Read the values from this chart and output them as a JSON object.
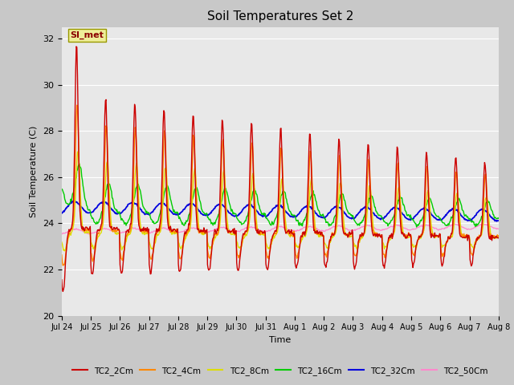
{
  "title": "Soil Temperatures Set 2",
  "xlabel": "Time",
  "ylabel": "Soil Temperature (C)",
  "ylim": [
    20,
    32.5
  ],
  "xlim": [
    0,
    15
  ],
  "yticks": [
    20,
    22,
    24,
    26,
    28,
    30,
    32
  ],
  "fig_bg_color": "#c8c8c8",
  "plot_bg_color": "#e8e8e8",
  "annotation_text": "SI_met",
  "series_colors": {
    "TC2_2Cm": "#cc0000",
    "TC2_4Cm": "#ff8800",
    "TC2_8Cm": "#dddd00",
    "TC2_16Cm": "#00cc00",
    "TC2_32Cm": "#0000dd",
    "TC2_50Cm": "#ff88cc"
  },
  "x_tick_labels": [
    "Jul 24",
    "Jul 25",
    "Jul 26",
    "Jul 27",
    "Jul 28",
    "Jul 29",
    "Jul 30",
    "Jul 31",
    "Aug 1",
    "Aug 2",
    "Aug 3",
    "Aug 4",
    "Aug 5",
    "Aug 6",
    "Aug 7",
    "Aug 8"
  ],
  "num_days": 15,
  "points_per_day": 48,
  "seed": 42
}
